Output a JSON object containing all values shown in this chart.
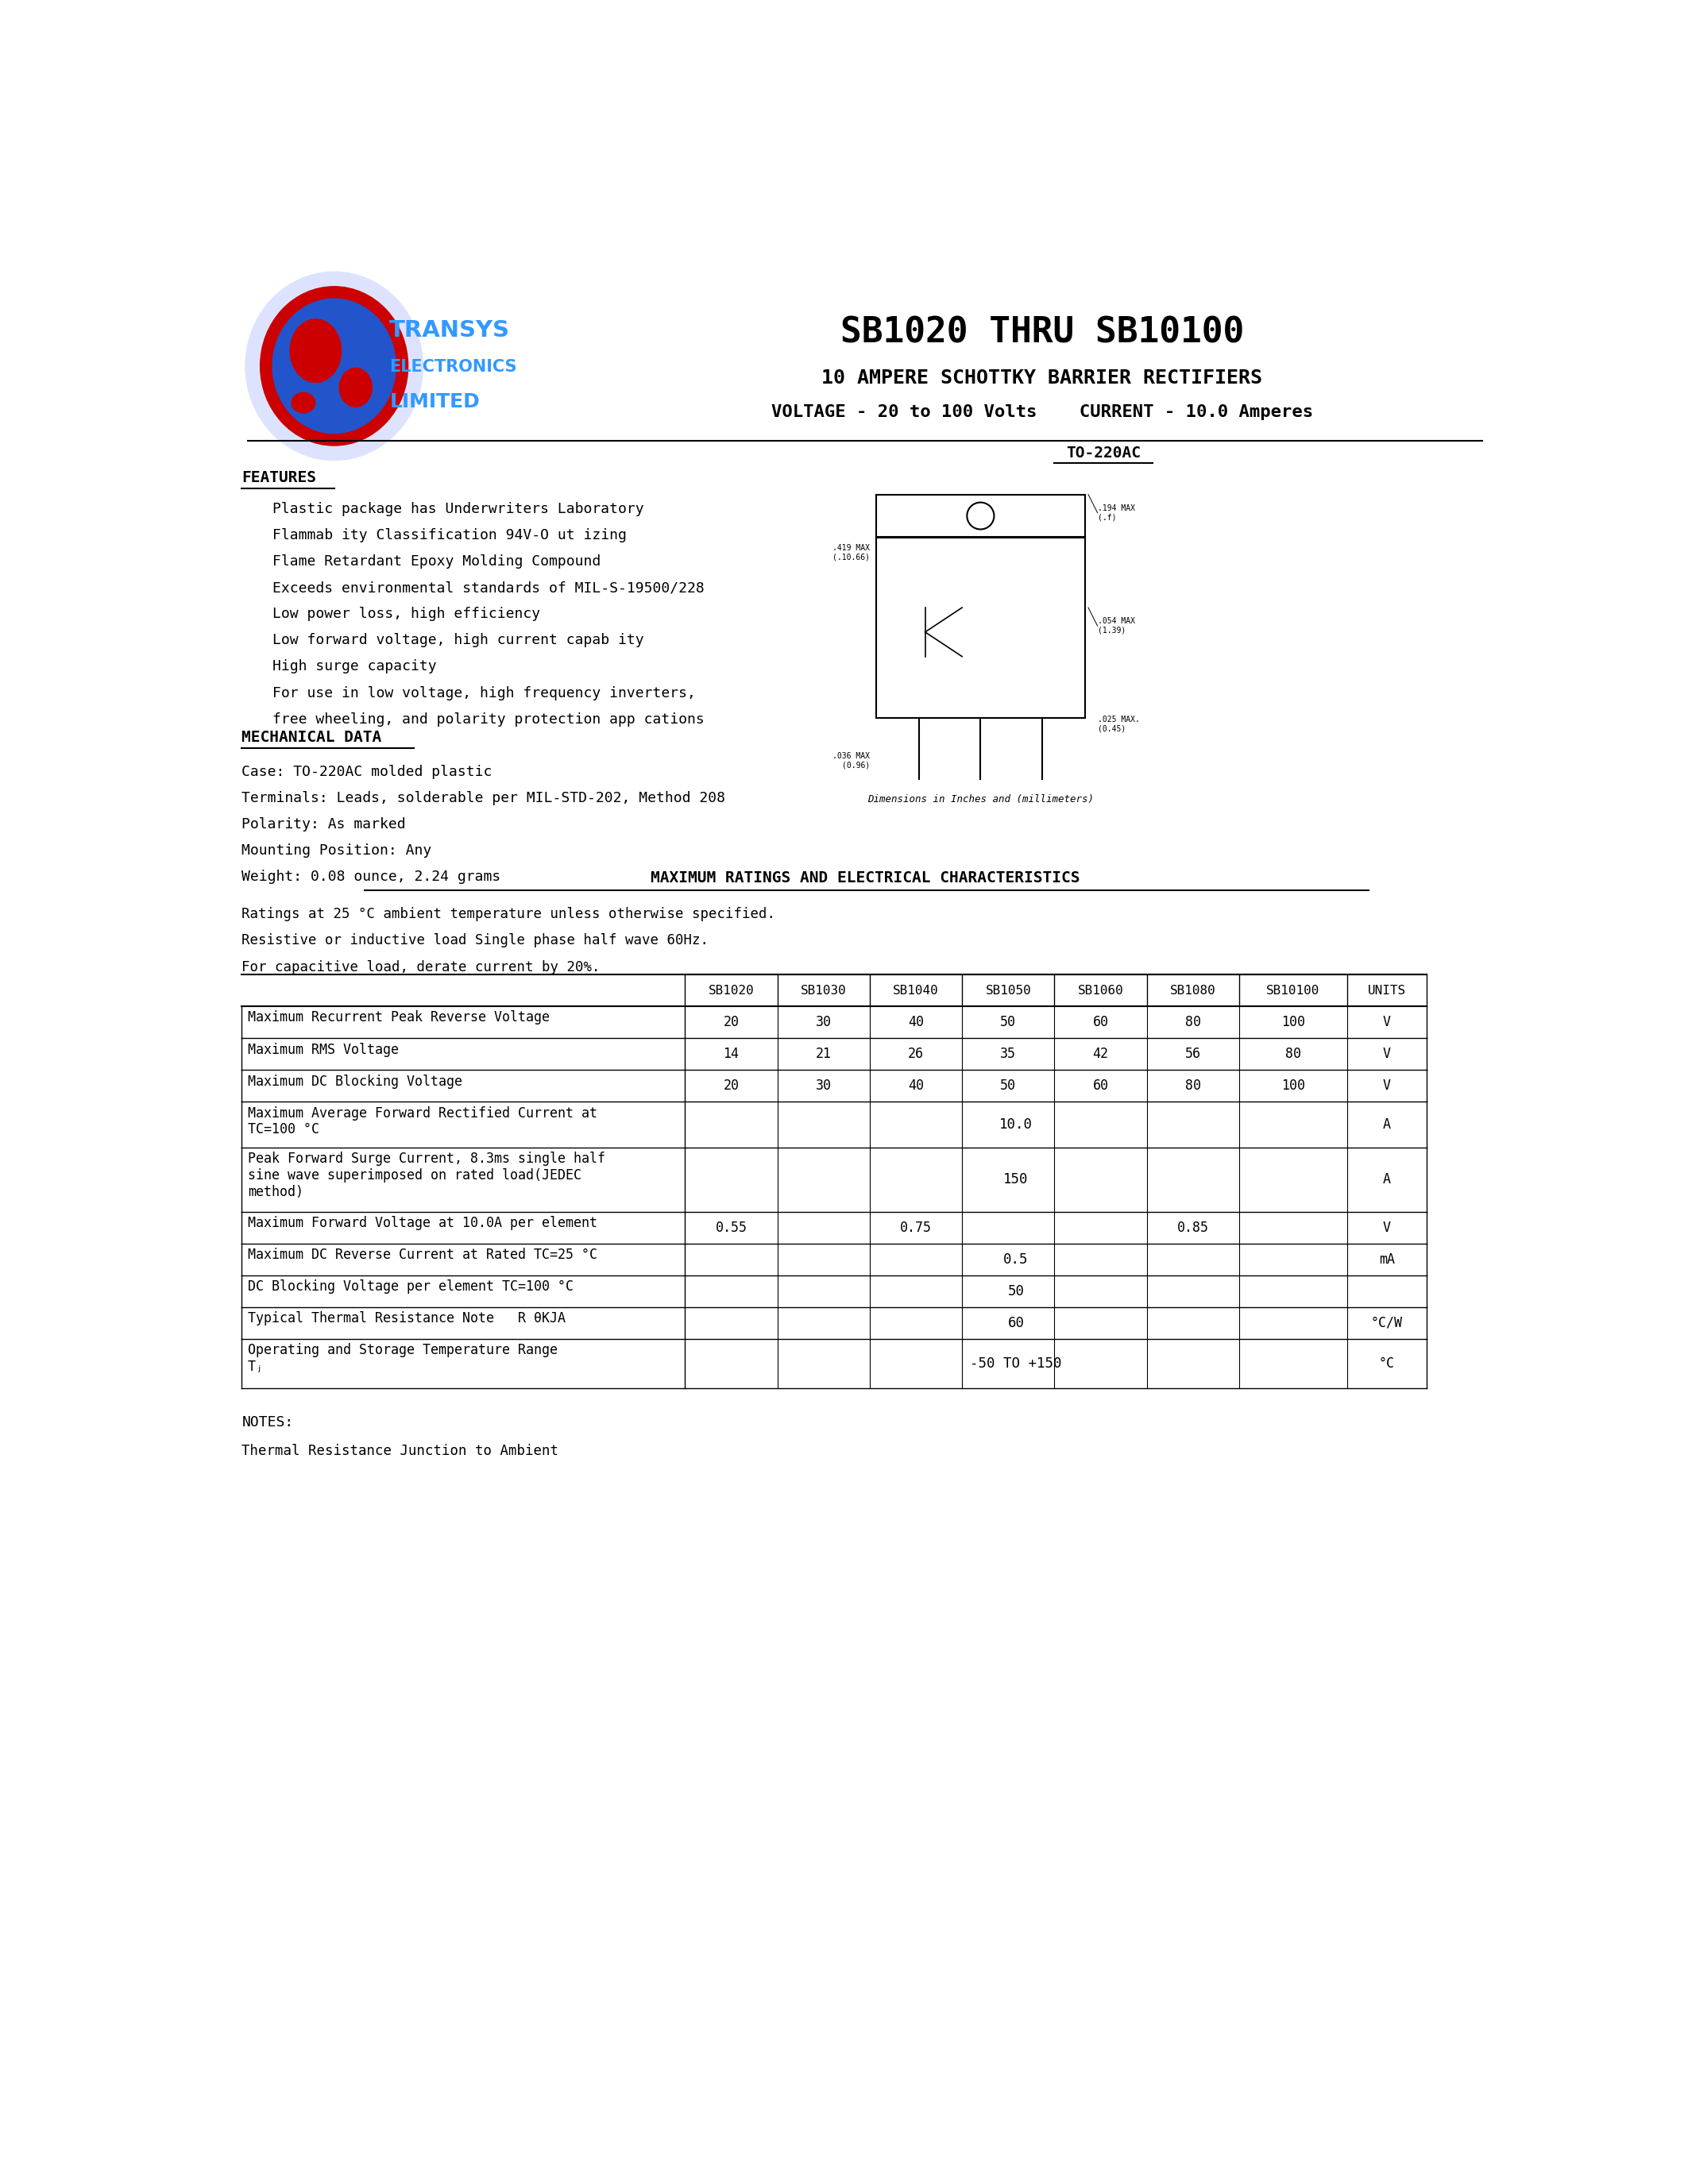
{
  "title": "SB1020 THRU SB10100",
  "subtitle1": "10 AMPERE SCHOTTKY BARRIER RECTIFIERS",
  "subtitle2": "VOLTAGE - 20 to 100 Volts    CURRENT - 10.0 Amperes",
  "bg_color": "#ffffff",
  "features_title": "FEATURES",
  "features": [
    "Plastic package has Underwriters Laboratory",
    "Flammab ity Classification 94V-O ut izing",
    "Flame Retardant Epoxy Molding Compound",
    "Exceeds environmental standards of MIL-S-19500/228",
    "Low power loss, high efficiency",
    "Low forward voltage, high current capab ity",
    "High surge capacity",
    "For use in low voltage, high frequency inverters,",
    "free wheeling, and polarity protection app cations"
  ],
  "mechanical_title": "MECHANICAL DATA",
  "mechanical": [
    "Case: TO-220AC molded plastic",
    "Terminals: Leads, solderable per MIL-STD-202, Method 208",
    "Polarity: As marked",
    "Mounting Position: Any",
    "Weight: 0.08 ounce, 2.24 grams"
  ],
  "package_label": "TO-220AC",
  "ratings_title": "MAXIMUM RATINGS AND ELECTRICAL CHARACTERISTICS",
  "ratings_note1": "Ratings at 25 °C ambient temperature unless otherwise specified.",
  "ratings_note2": "Resistive or inductive load Single phase half wave 60Hz.",
  "ratings_note3": "For capacitive load, derate current by 20%.",
  "table_headers": [
    "",
    "SB1020",
    "SB1030",
    "SB1040",
    "SB1050",
    "SB1060",
    "SB1080",
    "SB10100",
    "UNITS"
  ],
  "table_rows": [
    [
      "Maximum Recurrent Peak Reverse Voltage",
      "20",
      "30",
      "40",
      "50",
      "60",
      "80",
      "100",
      "V"
    ],
    [
      "Maximum RMS Voltage",
      "14",
      "21",
      "26",
      "35",
      "42",
      "56",
      "80",
      "V"
    ],
    [
      "Maximum DC Blocking Voltage",
      "20",
      "30",
      "40",
      "50",
      "60",
      "80",
      "100",
      "V"
    ],
    [
      "Maximum Average Forward Rectified Current at\nTC=100 °C",
      "",
      "",
      "",
      "10.0",
      "",
      "",
      "",
      "A"
    ],
    [
      "Peak Forward Surge Current, 8.3ms single half\nsine wave superimposed on rated load(JEDEC\nmethod)",
      "",
      "",
      "",
      "150",
      "",
      "",
      "",
      "A"
    ],
    [
      "Maximum Forward Voltage at 10.0A per element",
      "0.55",
      "",
      "0.75",
      "",
      "",
      "0.85",
      "",
      "V"
    ],
    [
      "Maximum DC Reverse Current at Rated TC=25 °C",
      "",
      "",
      "",
      "0.5",
      "",
      "",
      "",
      "mA"
    ],
    [
      "DC Blocking Voltage per element TC=100 °C",
      "",
      "",
      "",
      "50",
      "",
      "",
      "",
      ""
    ],
    [
      "Typical Thermal Resistance Note   R θKJA",
      "",
      "",
      "",
      "60",
      "",
      "",
      "",
      "°C/W"
    ],
    [
      "Operating and Storage Temperature Range\nTⱼ",
      "",
      "",
      "",
      "-50 TO +150",
      "",
      "",
      "",
      "°C"
    ]
  ],
  "notes_title": "NOTES:",
  "notes": [
    "Thermal Resistance Junction to Ambient"
  ]
}
